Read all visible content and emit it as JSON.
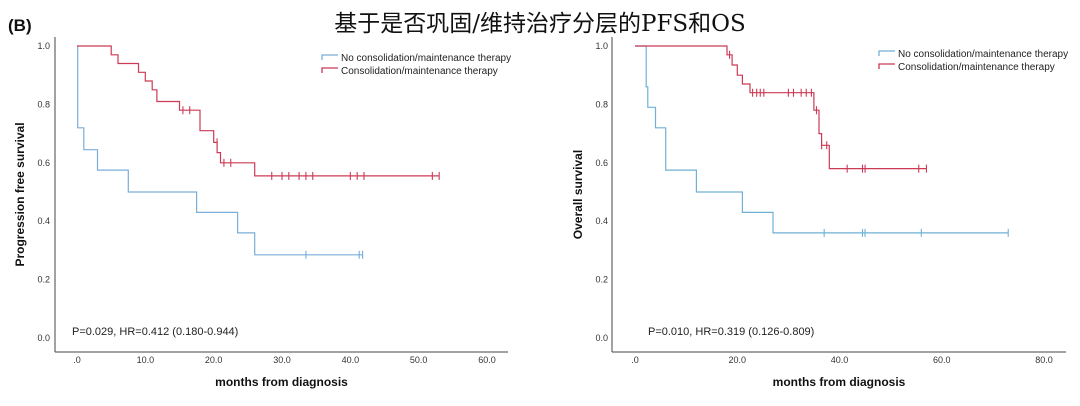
{
  "figure": {
    "title": "基于是否巩固/维持治疗分层的PFS和OS",
    "panel_label": "(B)"
  },
  "chart_data": [
    {
      "type": "line",
      "subtype": "kaplan-meier",
      "ylabel": "Progression free survival",
      "xlabel": "months from diagnosis",
      "xlim": [
        0,
        60
      ],
      "ylim": [
        0,
        1
      ],
      "x_ticks": [
        ".0",
        "10.0",
        "20.0",
        "30.0",
        "40.0",
        "50.0",
        "60.0"
      ],
      "x_tick_values": [
        0,
        10,
        20,
        30,
        40,
        50,
        60
      ],
      "y_ticks": [
        "0.0",
        "0.2",
        "0.4",
        "0.6",
        "0.8",
        "1.0"
      ],
      "y_tick_values": [
        0,
        0.2,
        0.4,
        0.6,
        0.8,
        1.0
      ],
      "legend_position": "top-right",
      "annotation": "P=0.029, HR=0.412 (0.180-0.944)",
      "series": [
        {
          "name": "No consolidation/maintenance therapy",
          "color": "#7aaed8",
          "steps": [
            [
              0,
              1.0
            ],
            [
              0.1,
              0.72
            ],
            [
              1.0,
              0.645
            ],
            [
              3.0,
              0.575
            ],
            [
              7.5,
              0.5
            ],
            [
              17.5,
              0.43
            ],
            [
              23.5,
              0.36
            ],
            [
              26.0,
              0.285
            ],
            [
              41.8,
              0.285
            ]
          ],
          "censored": [
            [
              33.5,
              0.285
            ],
            [
              41.3,
              0.285
            ],
            [
              41.8,
              0.285
            ]
          ]
        },
        {
          "name": "Consolidation/maintenance therapy",
          "color": "#cc3a55",
          "steps": [
            [
              0,
              1.0
            ],
            [
              5.0,
              0.97
            ],
            [
              6.0,
              0.94
            ],
            [
              9.0,
              0.91
            ],
            [
              10.0,
              0.88
            ],
            [
              11.0,
              0.85
            ],
            [
              11.7,
              0.81
            ],
            [
              15.0,
              0.78
            ],
            [
              18.0,
              0.71
            ],
            [
              20.0,
              0.67
            ],
            [
              20.5,
              0.635
            ],
            [
              21.0,
              0.6
            ],
            [
              26.0,
              0.555
            ],
            [
              53.0,
              0.555
            ]
          ],
          "censored": [
            [
              15.5,
              0.78
            ],
            [
              16.5,
              0.78
            ],
            [
              20.5,
              0.67
            ],
            [
              21.5,
              0.6
            ],
            [
              22.5,
              0.6
            ],
            [
              28.5,
              0.555
            ],
            [
              30.0,
              0.555
            ],
            [
              31.0,
              0.555
            ],
            [
              32.5,
              0.555
            ],
            [
              33.5,
              0.555
            ],
            [
              34.5,
              0.555
            ],
            [
              40.0,
              0.555
            ],
            [
              41.0,
              0.555
            ],
            [
              42.0,
              0.555
            ],
            [
              52.0,
              0.555
            ],
            [
              53.0,
              0.555
            ]
          ]
        }
      ]
    },
    {
      "type": "line",
      "subtype": "kaplan-meier",
      "ylabel": "Overall survival",
      "xlabel": "months from diagnosis",
      "xlim": [
        0,
        80
      ],
      "ylim": [
        0,
        1
      ],
      "x_ticks": [
        ".0",
        "20.0",
        "40.0",
        "60.0",
        "80.0"
      ],
      "x_tick_values": [
        0,
        20,
        40,
        60,
        80
      ],
      "y_ticks": [
        "0.0",
        "0.2",
        "0.4",
        "0.6",
        "0.8",
        "1.0"
      ],
      "y_tick_values": [
        0,
        0.2,
        0.4,
        0.6,
        0.8,
        1.0
      ],
      "legend_position": "top-right",
      "annotation": "P=0.010, HR=0.319 (0.126-0.809)",
      "series": [
        {
          "name": "No consolidation/maintenance therapy",
          "color": "#6fb1d6",
          "steps": [
            [
              0,
              1.0
            ],
            [
              2.2,
              0.86
            ],
            [
              2.5,
              0.79
            ],
            [
              4.0,
              0.72
            ],
            [
              6.0,
              0.575
            ],
            [
              12.0,
              0.5
            ],
            [
              21.0,
              0.43
            ],
            [
              27.0,
              0.36
            ],
            [
              73.0,
              0.36
            ]
          ],
          "censored": [
            [
              37.0,
              0.36
            ],
            [
              44.5,
              0.36
            ],
            [
              45.0,
              0.36
            ],
            [
              56.0,
              0.36
            ],
            [
              73.0,
              0.36
            ]
          ]
        },
        {
          "name": "Consolidation/maintenance therapy",
          "color": "#cc3a55",
          "steps": [
            [
              0,
              1.0
            ],
            [
              18.0,
              0.97
            ],
            [
              19.0,
              0.935
            ],
            [
              20.0,
              0.9
            ],
            [
              21.0,
              0.87
            ],
            [
              22.5,
              0.84
            ],
            [
              35.0,
              0.78
            ],
            [
              36.0,
              0.7
            ],
            [
              36.5,
              0.66
            ],
            [
              38.0,
              0.58
            ],
            [
              57.0,
              0.58
            ]
          ],
          "censored": [
            [
              18.5,
              0.97
            ],
            [
              23.0,
              0.84
            ],
            [
              23.8,
              0.84
            ],
            [
              24.5,
              0.84
            ],
            [
              25.2,
              0.84
            ],
            [
              30.0,
              0.84
            ],
            [
              31.0,
              0.84
            ],
            [
              32.5,
              0.84
            ],
            [
              33.5,
              0.84
            ],
            [
              34.5,
              0.84
            ],
            [
              35.5,
              0.78
            ],
            [
              36.5,
              0.66
            ],
            [
              37.5,
              0.66
            ],
            [
              41.5,
              0.58
            ],
            [
              44.5,
              0.58
            ],
            [
              45.0,
              0.58
            ],
            [
              55.5,
              0.58
            ],
            [
              57.0,
              0.58
            ]
          ]
        }
      ]
    }
  ]
}
